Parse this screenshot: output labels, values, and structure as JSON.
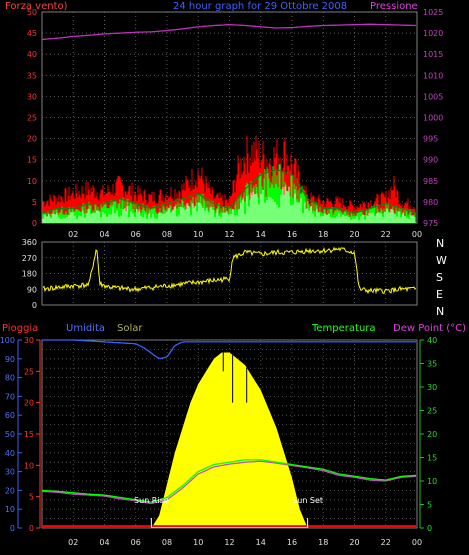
{
  "chart_data": [
    {
      "type": "line",
      "title": "24 hour graph for  29 Ottobre 2008",
      "left_label": "Forza vento)",
      "right_label": "Pressione",
      "x_ticks": [
        "02",
        "04",
        "06",
        "08",
        "10",
        "12",
        "14",
        "16",
        "18",
        "20",
        "22",
        "00"
      ],
      "left_ticks": [
        "0",
        "5",
        "10",
        "15",
        "20",
        "25",
        "30",
        "35",
        "40",
        "45",
        "50"
      ],
      "right_ticks": [
        "975",
        "980",
        "985",
        "990",
        "995",
        "1000",
        "1005",
        "1010",
        "1015",
        "1020",
        "1025"
      ],
      "ylim_left": [
        0,
        50
      ],
      "ylim_right": [
        975,
        1025
      ],
      "series": [
        {
          "key": "pressure",
          "color": "#c030c0",
          "x": [
            0,
            1,
            2,
            3,
            4,
            5,
            6,
            7,
            8,
            9,
            10,
            11,
            12,
            13,
            14,
            15,
            16,
            17,
            18,
            19,
            20,
            21,
            22,
            23,
            24
          ],
          "values": [
            1018.5,
            1018.8,
            1019.2,
            1019.5,
            1019.8,
            1020.0,
            1020.2,
            1020.3,
            1020.6,
            1021.0,
            1021.5,
            1021.8,
            1022.0,
            1021.8,
            1021.5,
            1021.2,
            1021.3,
            1021.6,
            1021.8,
            1021.9,
            1022.0,
            1022.1,
            1022.0,
            1021.9,
            1021.8
          ]
        },
        {
          "key": "gust",
          "color": "#ff0000",
          "x": [
            0,
            1,
            2,
            3,
            4,
            5,
            6,
            7,
            8,
            9,
            10,
            11,
            12,
            12.5,
            13,
            13.5,
            14,
            14.5,
            15,
            15.5,
            16,
            16.5,
            17,
            18,
            19,
            20,
            21,
            22,
            22.5,
            23,
            24
          ],
          "values": [
            5,
            6,
            7,
            8,
            7,
            9,
            7,
            6,
            7,
            8,
            12,
            6,
            5,
            12,
            16,
            17,
            16,
            15,
            16,
            17,
            14,
            10,
            6,
            5,
            5,
            4,
            5,
            6,
            9,
            5,
            4
          ]
        },
        {
          "key": "speed",
          "color": "#00ff00",
          "x": [
            0,
            1,
            2,
            3,
            4,
            5,
            6,
            7,
            8,
            9,
            10,
            11,
            12,
            13,
            14,
            15,
            16,
            17,
            18,
            19,
            20,
            21,
            22,
            23,
            24
          ],
          "values": [
            2,
            3,
            3,
            4,
            4,
            5,
            4,
            3,
            4,
            5,
            6,
            4,
            3,
            7,
            10,
            11,
            10,
            5,
            3,
            3,
            2,
            3,
            4,
            3,
            2
          ]
        }
      ]
    },
    {
      "type": "line",
      "right_label": "N W S E N",
      "left_ticks": [
        "0",
        "90",
        "180",
        "270",
        "360"
      ],
      "ylim": [
        0,
        360
      ],
      "series": [
        {
          "key": "direction",
          "color": "#ffff00",
          "x": [
            0,
            1,
            2,
            3,
            3.5,
            3.7,
            4,
            4.5,
            5,
            6,
            7,
            8,
            9,
            10,
            11,
            12,
            12.2,
            12.5,
            13,
            14,
            15,
            16,
            17,
            18,
            19,
            20,
            20.3,
            21,
            22,
            23,
            24
          ],
          "values": [
            90,
            100,
            110,
            115,
            330,
            120,
            110,
            100,
            95,
            90,
            100,
            110,
            120,
            130,
            140,
            150,
            270,
            280,
            300,
            290,
            300,
            300,
            310,
            310,
            320,
            300,
            90,
            80,
            80,
            90,
            90
          ]
        }
      ]
    },
    {
      "type": "area",
      "legend": [
        "Pioggia",
        "Umidita",
        "Solar",
        "Temperatura",
        "Dew Point (°C)"
      ],
      "left_ticks": [
        "0",
        "10",
        "20",
        "30",
        "40",
        "50",
        "60",
        "70",
        "80",
        "90",
        "100"
      ],
      "left2_ticks": [
        "0",
        "5",
        "10",
        "15",
        "20",
        "25",
        "30"
      ],
      "right_ticks": [
        "0",
        "5",
        "10",
        "15",
        "20",
        "25",
        "30",
        "35",
        "40"
      ],
      "ylim_humidity": [
        0,
        100
      ],
      "ylim_temperature": [
        0,
        40
      ],
      "annotations": [
        "Sun Rise",
        "Sun Set"
      ],
      "series": [
        {
          "key": "humidity",
          "color": "#3a60ff",
          "x": [
            0,
            2,
            4,
            6,
            6.5,
            7,
            7.5,
            8,
            8.5,
            9,
            10,
            12,
            14,
            16,
            18,
            20,
            22,
            24
          ],
          "values": [
            100,
            100,
            99,
            98,
            96,
            93,
            90,
            91,
            97,
            99,
            99,
            99,
            99,
            99,
            99,
            99,
            99,
            99
          ]
        },
        {
          "key": "temperature",
          "color": "#00ff00",
          "x": [
            0,
            1,
            2,
            3,
            4,
            5,
            6,
            7,
            8,
            9,
            10,
            11,
            12,
            13,
            14,
            15,
            16,
            17,
            18,
            19,
            20,
            21,
            22,
            23,
            24
          ],
          "values": [
            8,
            7.8,
            7.5,
            7.2,
            7.0,
            6.5,
            6.0,
            5.5,
            6.5,
            9.0,
            12.0,
            13.5,
            14.0,
            14.5,
            14.5,
            14.0,
            13.5,
            13.0,
            12.5,
            11.5,
            11.0,
            10.5,
            10.2,
            11.0,
            11.2
          ]
        },
        {
          "key": "dewpoint",
          "color": "#c050c0",
          "x": [
            0,
            1,
            2,
            3,
            4,
            5,
            6,
            7,
            8,
            9,
            10,
            11,
            12,
            13,
            14,
            15,
            16,
            17,
            18,
            19,
            20,
            21,
            22,
            23,
            24
          ],
          "values": [
            7.8,
            7.6,
            7.2,
            7.0,
            6.8,
            6.2,
            5.8,
            5.2,
            6.0,
            8.5,
            11.5,
            13.0,
            13.6,
            14.0,
            14.2,
            13.8,
            13.3,
            12.8,
            12.2,
            11.2,
            10.8,
            10.2,
            10.0,
            10.8,
            11.0
          ]
        },
        {
          "key": "solar",
          "color": "#ffff00",
          "x": [
            7,
            7.5,
            8,
            8.5,
            9,
            9.5,
            10,
            10.5,
            11,
            11.5,
            12,
            12.5,
            13,
            13.5,
            14,
            14.5,
            15,
            15.5,
            16,
            16.5,
            17
          ],
          "values": [
            0,
            2,
            7,
            12,
            16,
            20,
            23,
            25,
            27,
            28,
            28,
            27,
            26,
            24,
            22,
            19,
            16,
            12,
            8,
            3,
            0
          ]
        },
        {
          "key": "rain",
          "color": "#ff0000",
          "x": [
            0,
            24
          ],
          "values": [
            0.3,
            0.3
          ]
        }
      ]
    }
  ]
}
